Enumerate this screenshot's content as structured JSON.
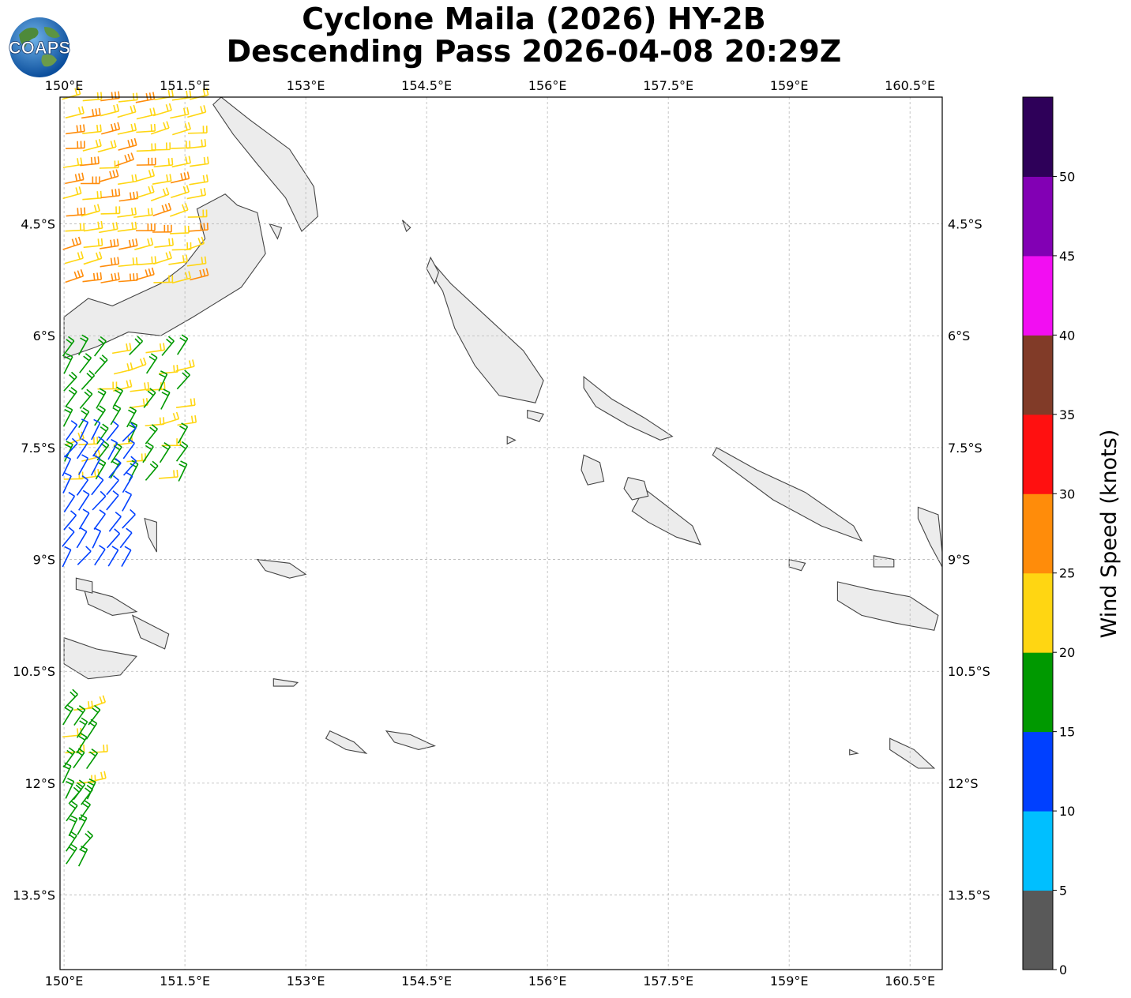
{
  "title": {
    "line1": "Cyclone Maila (2026) HY-2B",
    "line2": "Descending Pass 2026-04-08 20:29Z"
  },
  "logo": {
    "text": "COAPS",
    "icon": "globe-logo-icon"
  },
  "map": {
    "lon_range": [
      149.95,
      160.9
    ],
    "lat_range": [
      -14.5,
      -2.8
    ],
    "lon_ticks": [
      {
        "value": 150,
        "label": "150°E"
      },
      {
        "value": 151.5,
        "label": "151.5°E"
      },
      {
        "value": 153,
        "label": "153°E"
      },
      {
        "value": 154.5,
        "label": "154.5°E"
      },
      {
        "value": 156,
        "label": "156°E"
      },
      {
        "value": 157.5,
        "label": "157.5°E"
      },
      {
        "value": 159,
        "label": "159°E"
      },
      {
        "value": 160.5,
        "label": "160.5°E"
      }
    ],
    "lat_ticks": [
      {
        "value": -4.5,
        "label": "4.5°S"
      },
      {
        "value": -6,
        "label": "6°S"
      },
      {
        "value": -7.5,
        "label": "7.5°S"
      },
      {
        "value": -9,
        "label": "9°S"
      },
      {
        "value": -10.5,
        "label": "10.5°S"
      },
      {
        "value": -12,
        "label": "12°S"
      },
      {
        "value": -13.5,
        "label": "13.5°S"
      }
    ],
    "gridlines": true
  },
  "colorbar": {
    "label": "Wind Speed (knots)",
    "ticks": [
      "0",
      "5",
      "10",
      "15",
      "20",
      "25",
      "30",
      "35",
      "40",
      "45",
      "50"
    ],
    "bins": [
      {
        "min": 0,
        "max": 5,
        "color": "#595959"
      },
      {
        "min": 5,
        "max": 10,
        "color": "#00bfff"
      },
      {
        "min": 10,
        "max": 15,
        "color": "#0040ff"
      },
      {
        "min": 15,
        "max": 20,
        "color": "#009900"
      },
      {
        "min": 20,
        "max": 25,
        "color": "#ffd612"
      },
      {
        "min": 25,
        "max": 30,
        "color": "#ff8c0a"
      },
      {
        "min": 30,
        "max": 35,
        "color": "#ff1010"
      },
      {
        "min": 35,
        "max": 40,
        "color": "#813b28"
      },
      {
        "min": 40,
        "max": 45,
        "color": "#f20ef2"
      },
      {
        "min": 45,
        "max": 50,
        "color": "#8200b4"
      },
      {
        "min": 50,
        "max": 55,
        "color": "#2e0059"
      }
    ]
  },
  "wind_swaths": [
    {
      "lon": [
        150.0,
        151.75
      ],
      "lat": [
        -2.85,
        -5.35
      ],
      "lon_step": 0.22,
      "lat_step": 0.22,
      "speeds": [
        22,
        24,
        27
      ]
    },
    {
      "lon": [
        150.0,
        151.45
      ],
      "lat": [
        -6.25,
        -8.1
      ],
      "lon_step": 0.2,
      "lat_step": 0.24,
      "speeds": [
        17,
        18,
        20
      ]
    },
    {
      "lon": [
        150.0,
        150.85
      ],
      "lat": [
        -7.4,
        -9.15
      ],
      "lon_step": 0.18,
      "lat_step": 0.24,
      "speeds": [
        12,
        13,
        14
      ]
    },
    {
      "lon": [
        150.0,
        150.4
      ],
      "lat": [
        -11.0,
        -12.3
      ],
      "lon_step": 0.14,
      "lat_step": 0.2,
      "speeds": [
        17,
        18,
        22
      ]
    },
    {
      "lon": [
        150.05,
        150.2
      ],
      "lat": [
        -12.3,
        -13.2
      ],
      "lon_step": 0.14,
      "lat_step": 0.2,
      "speeds": [
        16,
        17,
        18
      ]
    }
  ],
  "land": [
    {
      "name": "New Britain",
      "points": [
        [
          150.0,
          -5.75
        ],
        [
          150.3,
          -5.5
        ],
        [
          150.6,
          -5.6
        ],
        [
          150.9,
          -5.45
        ],
        [
          151.2,
          -5.3
        ],
        [
          151.5,
          -5.05
        ],
        [
          151.75,
          -4.7
        ],
        [
          151.65,
          -4.3
        ],
        [
          152.0,
          -4.1
        ],
        [
          152.15,
          -4.25
        ],
        [
          152.4,
          -4.35
        ],
        [
          152.5,
          -4.9
        ],
        [
          152.2,
          -5.35
        ],
        [
          151.9,
          -5.55
        ],
        [
          151.6,
          -5.75
        ],
        [
          151.2,
          -6.0
        ],
        [
          150.8,
          -5.95
        ],
        [
          150.4,
          -6.15
        ],
        [
          150.0,
          -6.3
        ]
      ]
    },
    {
      "name": "New Ireland",
      "points": [
        [
          151.95,
          -2.8
        ],
        [
          152.3,
          -3.1
        ],
        [
          152.8,
          -3.5
        ],
        [
          153.1,
          -4.0
        ],
        [
          153.15,
          -4.4
        ],
        [
          152.95,
          -4.6
        ],
        [
          152.75,
          -4.15
        ],
        [
          152.4,
          -3.7
        ],
        [
          152.1,
          -3.3
        ],
        [
          151.85,
          -2.9
        ]
      ]
    },
    {
      "name": "Bougainville",
      "points": [
        [
          154.6,
          -5.05
        ],
        [
          154.8,
          -5.3
        ],
        [
          155.3,
          -5.8
        ],
        [
          155.7,
          -6.2
        ],
        [
          155.95,
          -6.6
        ],
        [
          155.85,
          -6.9
        ],
        [
          155.4,
          -6.8
        ],
        [
          155.1,
          -6.4
        ],
        [
          154.85,
          -5.9
        ],
        [
          154.7,
          -5.4
        ],
        [
          154.55,
          -5.15
        ]
      ]
    },
    {
      "name": "Choiseul",
      "points": [
        [
          156.45,
          -6.55
        ],
        [
          156.8,
          -6.85
        ],
        [
          157.2,
          -7.1
        ],
        [
          157.55,
          -7.35
        ],
        [
          157.4,
          -7.4
        ],
        [
          157.0,
          -7.2
        ],
        [
          156.6,
          -6.95
        ],
        [
          156.45,
          -6.7
        ]
      ]
    },
    {
      "name": "Santa Isabel",
      "points": [
        [
          158.1,
          -7.5
        ],
        [
          158.6,
          -7.8
        ],
        [
          159.2,
          -8.1
        ],
        [
          159.8,
          -8.55
        ],
        [
          159.9,
          -8.75
        ],
        [
          159.4,
          -8.55
        ],
        [
          158.8,
          -8.2
        ],
        [
          158.3,
          -7.8
        ],
        [
          158.05,
          -7.6
        ]
      ]
    },
    {
      "name": "New Georgia",
      "points": [
        [
          157.2,
          -8.05
        ],
        [
          157.5,
          -8.3
        ],
        [
          157.8,
          -8.55
        ],
        [
          157.9,
          -8.8
        ],
        [
          157.6,
          -8.7
        ],
        [
          157.25,
          -8.5
        ],
        [
          157.05,
          -8.35
        ]
      ]
    },
    {
      "name": "Vella Lavella",
      "points": [
        [
          156.45,
          -7.6
        ],
        [
          156.65,
          -7.7
        ],
        [
          156.7,
          -7.95
        ],
        [
          156.5,
          -8.0
        ],
        [
          156.42,
          -7.8
        ]
      ]
    },
    {
      "name": "Kolombangara",
      "points": [
        [
          157.0,
          -7.9
        ],
        [
          157.2,
          -7.95
        ],
        [
          157.25,
          -8.15
        ],
        [
          157.05,
          -8.2
        ],
        [
          156.95,
          -8.05
        ]
      ]
    },
    {
      "name": "Guadalcanal",
      "points": [
        [
          159.6,
          -9.3
        ],
        [
          160.0,
          -9.4
        ],
        [
          160.5,
          -9.5
        ],
        [
          160.85,
          -9.75
        ],
        [
          160.8,
          -9.95
        ],
        [
          160.3,
          -9.85
        ],
        [
          159.9,
          -9.75
        ],
        [
          159.6,
          -9.55
        ]
      ]
    },
    {
      "name": "Malaita",
      "points": [
        [
          160.6,
          -8.3
        ],
        [
          160.85,
          -8.4
        ],
        [
          160.9,
          -8.9
        ],
        [
          160.9,
          -9.1
        ],
        [
          160.75,
          -8.8
        ],
        [
          160.6,
          -8.45
        ]
      ]
    },
    {
      "name": "San Cristobal",
      "points": [
        [
          161.2,
          -10.2
        ],
        [
          161.6,
          -10.4
        ],
        [
          161.8,
          -10.6
        ],
        [
          161.45,
          -10.55
        ],
        [
          161.15,
          -10.35
        ]
      ]
    },
    {
      "name": "Makira",
      "points": [
        [
          160.25,
          -11.4
        ],
        [
          160.55,
          -11.55
        ],
        [
          160.8,
          -11.8
        ],
        [
          160.6,
          -11.8
        ],
        [
          160.25,
          -11.55
        ]
      ]
    },
    {
      "name": "Papua East",
      "points": [
        [
          150.0,
          -10.05
        ],
        [
          150.4,
          -10.2
        ],
        [
          150.9,
          -10.3
        ],
        [
          150.7,
          -10.55
        ],
        [
          150.3,
          -10.6
        ],
        [
          150.0,
          -10.4
        ]
      ]
    },
    {
      "name": "Woodlark",
      "points": [
        [
          152.4,
          -9.0
        ],
        [
          152.8,
          -9.05
        ],
        [
          153.0,
          -9.2
        ],
        [
          152.8,
          -9.25
        ],
        [
          152.5,
          -9.15
        ]
      ]
    },
    {
      "name": "Rossel",
      "points": [
        [
          154.0,
          -11.3
        ],
        [
          154.3,
          -11.35
        ],
        [
          154.6,
          -11.5
        ],
        [
          154.4,
          -11.55
        ],
        [
          154.1,
          -11.45
        ]
      ]
    },
    {
      "name": "Fergusson",
      "points": [
        [
          150.25,
          -9.4
        ],
        [
          150.6,
          -9.5
        ],
        [
          150.9,
          -9.7
        ],
        [
          150.6,
          -9.75
        ],
        [
          150.3,
          -9.6
        ]
      ]
    },
    {
      "name": "Goodenough",
      "points": [
        [
          150.15,
          -9.25
        ],
        [
          150.35,
          -9.3
        ],
        [
          150.35,
          -9.45
        ],
        [
          150.15,
          -9.4
        ]
      ]
    },
    {
      "name": "Normanby",
      "points": [
        [
          150.85,
          -9.75
        ],
        [
          151.3,
          -10.0
        ],
        [
          151.25,
          -10.2
        ],
        [
          150.95,
          -10.05
        ]
      ]
    },
    {
      "name": "Misima",
      "points": [
        [
          152.6,
          -10.6
        ],
        [
          152.9,
          -10.65
        ],
        [
          152.85,
          -10.7
        ],
        [
          152.6,
          -10.7
        ]
      ]
    },
    {
      "name": "Tagula",
      "points": [
        [
          153.3,
          -11.3
        ],
        [
          153.6,
          -11.45
        ],
        [
          153.75,
          -11.6
        ],
        [
          153.5,
          -11.55
        ],
        [
          153.25,
          -11.4
        ]
      ]
    },
    {
      "name": "Trobriand",
      "points": [
        [
          151.0,
          -8.45
        ],
        [
          151.15,
          -8.5
        ],
        [
          151.15,
          -8.9
        ],
        [
          151.05,
          -8.7
        ]
      ]
    },
    {
      "name": "Shortland",
      "points": [
        [
          155.75,
          -7.0
        ],
        [
          155.95,
          -7.05
        ],
        [
          155.9,
          -7.15
        ],
        [
          155.75,
          -7.1
        ]
      ]
    },
    {
      "name": "Treasury",
      "points": [
        [
          155.5,
          -7.35
        ],
        [
          155.6,
          -7.4
        ],
        [
          155.5,
          -7.45
        ]
      ]
    },
    {
      "name": "Buka",
      "points": [
        [
          154.55,
          -4.95
        ],
        [
          154.65,
          -5.15
        ],
        [
          154.6,
          -5.3
        ],
        [
          154.5,
          -5.1
        ]
      ]
    },
    {
      "name": "Duke of York",
      "points": [
        [
          152.55,
          -4.5
        ],
        [
          152.7,
          -4.55
        ],
        [
          152.65,
          -4.7
        ]
      ]
    },
    {
      "name": "Nissan",
      "points": [
        [
          154.2,
          -4.45
        ],
        [
          154.3,
          -4.55
        ],
        [
          154.25,
          -4.6
        ]
      ]
    },
    {
      "name": "Florida",
      "points": [
        [
          160.05,
          -8.95
        ],
        [
          160.3,
          -9.0
        ],
        [
          160.3,
          -9.1
        ],
        [
          160.05,
          -9.1
        ]
      ]
    },
    {
      "name": "Russell",
      "points": [
        [
          159.0,
          -9.0
        ],
        [
          159.2,
          -9.05
        ],
        [
          159.15,
          -9.15
        ],
        [
          159.0,
          -9.1
        ]
      ]
    },
    {
      "name": "Rennell",
      "points": [
        [
          159.75,
          -11.55
        ],
        [
          159.85,
          -11.6
        ],
        [
          159.75,
          -11.62
        ]
      ]
    }
  ]
}
